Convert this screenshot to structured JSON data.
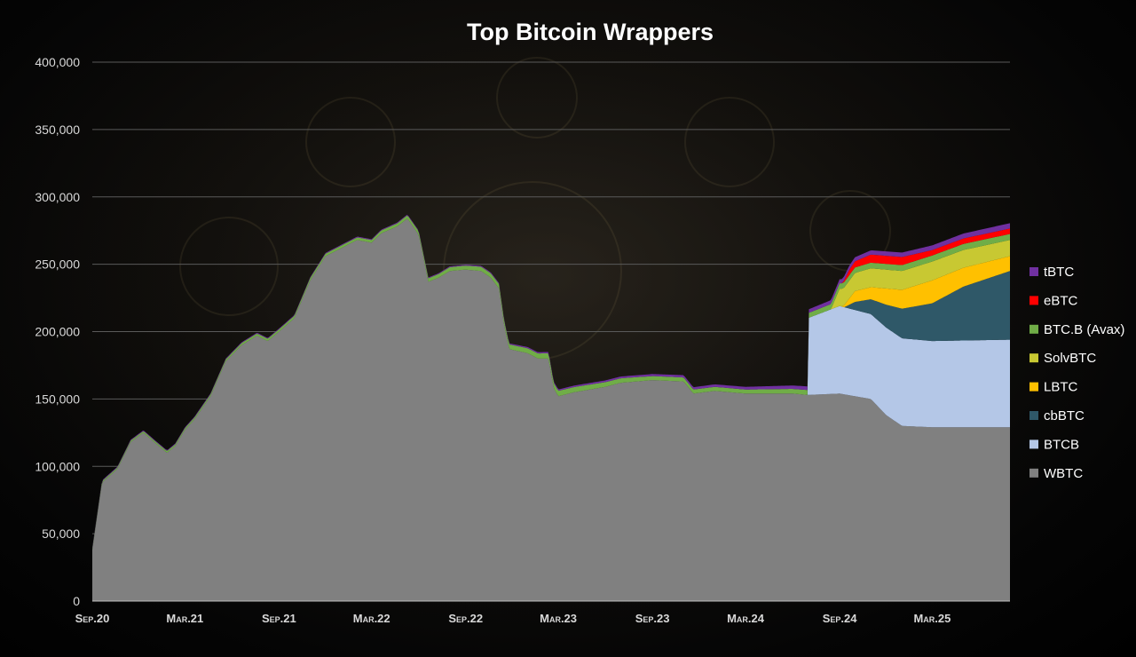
{
  "chart_data": {
    "type": "area",
    "stacked": true,
    "title": "Top Bitcoin Wrappers",
    "xlabel": "",
    "ylabel": "",
    "x_range": [
      "2020-09-01",
      "2025-07-31"
    ],
    "ylim": [
      0,
      400000
    ],
    "y_ticks": [
      0,
      50000,
      100000,
      150000,
      200000,
      250000,
      300000,
      350000,
      400000
    ],
    "y_tick_labels": [
      "0",
      "50,000",
      "100,000",
      "150,000",
      "200,000",
      "250,000",
      "300,000",
      "350,000",
      "400,000"
    ],
    "x_ticks": [
      "2020-09-01",
      "2021-03-01",
      "2021-09-01",
      "2022-03-01",
      "2022-09-01",
      "2023-03-01",
      "2023-09-01",
      "2024-03-01",
      "2024-09-01",
      "2025-03-01"
    ],
    "x_tick_labels": [
      "Sep.20",
      "Mar.21",
      "Sep.21",
      "Mar.22",
      "Sep.22",
      "Mar.23",
      "Sep.23",
      "Mar.24",
      "Sep.24",
      "Mar.25"
    ],
    "grid": "horizontal",
    "legend_position": "right",
    "series_order_bottom_to_top": [
      "WBTC",
      "BTCB",
      "cbBTC",
      "LBTC",
      "SolvBTC",
      "BTC.B (Avax)",
      "eBTC",
      "tBTC"
    ],
    "legend_order": [
      "tBTC",
      "eBTC",
      "BTC.B (Avax)",
      "SolvBTC",
      "LBTC",
      "cbBTC",
      "BTCB",
      "WBTC"
    ],
    "series": [
      {
        "name": "WBTC",
        "color": "#808080",
        "points": [
          [
            "2020-09-01",
            38000
          ],
          [
            "2020-09-20",
            88000
          ],
          [
            "2020-10-20",
            98000
          ],
          [
            "2020-11-15",
            118000
          ],
          [
            "2020-12-10",
            125000
          ],
          [
            "2020-12-31",
            118000
          ],
          [
            "2021-01-25",
            110000
          ],
          [
            "2021-02-10",
            115000
          ],
          [
            "2021-03-01",
            127000
          ],
          [
            "2021-03-20",
            135000
          ],
          [
            "2021-04-20",
            152000
          ],
          [
            "2021-05-20",
            178000
          ],
          [
            "2021-06-20",
            190000
          ],
          [
            "2021-07-20",
            197000
          ],
          [
            "2021-08-10",
            193000
          ],
          [
            "2021-09-01",
            200000
          ],
          [
            "2021-10-01",
            210000
          ],
          [
            "2021-11-01",
            238000
          ],
          [
            "2021-12-01",
            256000
          ],
          [
            "2022-01-01",
            262000
          ],
          [
            "2022-02-01",
            268000
          ],
          [
            "2022-03-01",
            266000
          ],
          [
            "2022-03-20",
            273000
          ],
          [
            "2022-04-20",
            278000
          ],
          [
            "2022-05-10",
            284000
          ],
          [
            "2022-06-01",
            272000
          ],
          [
            "2022-06-20",
            237000
          ],
          [
            "2022-07-10",
            240000
          ],
          [
            "2022-08-01",
            245000
          ],
          [
            "2022-09-01",
            246000
          ],
          [
            "2022-10-01",
            245000
          ],
          [
            "2022-10-20",
            240000
          ],
          [
            "2022-11-05",
            232000
          ],
          [
            "2022-11-15",
            205000
          ],
          [
            "2022-11-25",
            187000
          ],
          [
            "2022-12-31",
            184000
          ],
          [
            "2023-01-20",
            180000
          ],
          [
            "2023-02-10",
            180000
          ],
          [
            "2023-02-20",
            158000
          ],
          [
            "2023-03-01",
            152000
          ],
          [
            "2023-04-01",
            155000
          ],
          [
            "2023-06-01",
            159000
          ],
          [
            "2023-07-01",
            162000
          ],
          [
            "2023-09-01",
            164000
          ],
          [
            "2023-11-01",
            163000
          ],
          [
            "2023-11-20",
            154000
          ],
          [
            "2024-01-01",
            156000
          ],
          [
            "2024-03-01",
            154000
          ],
          [
            "2024-05-01",
            154000
          ],
          [
            "2024-06-01",
            154000
          ],
          [
            "2024-07-01",
            153000
          ],
          [
            "2024-09-01",
            154000
          ],
          [
            "2024-11-01",
            150000
          ],
          [
            "2024-12-01",
            138000
          ],
          [
            "2025-01-01",
            130000
          ],
          [
            "2025-03-01",
            129000
          ],
          [
            "2025-07-31",
            129000
          ]
        ]
      },
      {
        "name": "BTCB",
        "color": "#b4c7e7",
        "points": [
          [
            "2020-09-01",
            0
          ],
          [
            "2024-06-30",
            0
          ],
          [
            "2024-07-01",
            57000
          ],
          [
            "2024-09-01",
            65000
          ],
          [
            "2024-10-01",
            64000
          ],
          [
            "2024-11-01",
            63000
          ],
          [
            "2024-12-01",
            65000
          ],
          [
            "2025-01-01",
            65000
          ],
          [
            "2025-03-01",
            64000
          ],
          [
            "2025-07-31",
            65000
          ]
        ]
      },
      {
        "name": "cbBTC",
        "color": "#2f5868",
        "points": [
          [
            "2020-09-01",
            0
          ],
          [
            "2024-09-10",
            0
          ],
          [
            "2024-10-01",
            6000
          ],
          [
            "2024-11-01",
            11000
          ],
          [
            "2024-12-01",
            17000
          ],
          [
            "2025-01-01",
            22000
          ],
          [
            "2025-03-01",
            28000
          ],
          [
            "2025-05-01",
            40000
          ],
          [
            "2025-07-31",
            51000
          ]
        ]
      },
      {
        "name": "LBTC",
        "color": "#ffc000",
        "points": [
          [
            "2020-09-01",
            0
          ],
          [
            "2024-09-05",
            0
          ],
          [
            "2024-10-01",
            8000
          ],
          [
            "2024-11-01",
            9000
          ],
          [
            "2024-12-01",
            12000
          ],
          [
            "2025-01-01",
            14000
          ],
          [
            "2025-03-01",
            17000
          ],
          [
            "2025-05-01",
            14000
          ],
          [
            "2025-07-31",
            11000
          ]
        ]
      },
      {
        "name": "SolvBTC",
        "color": "#c8c832",
        "points": [
          [
            "2020-09-01",
            0
          ],
          [
            "2024-08-15",
            0
          ],
          [
            "2024-09-01",
            13000
          ],
          [
            "2024-11-01",
            14000
          ],
          [
            "2025-01-01",
            14000
          ],
          [
            "2025-03-01",
            14000
          ],
          [
            "2025-07-31",
            12000
          ]
        ]
      },
      {
        "name": "BTC.B (Avax)",
        "color": "#70ad47",
        "points": [
          [
            "2020-09-01",
            1000
          ],
          [
            "2022-03-01",
            2000
          ],
          [
            "2022-09-01",
            3000
          ],
          [
            "2023-03-01",
            4000
          ],
          [
            "2023-09-01",
            3000
          ],
          [
            "2024-03-01",
            3000
          ],
          [
            "2024-09-01",
            4000
          ],
          [
            "2025-03-01",
            4500
          ],
          [
            "2025-07-31",
            4500
          ]
        ]
      },
      {
        "name": "eBTC",
        "color": "#ff0000",
        "points": [
          [
            "2020-09-01",
            0
          ],
          [
            "2024-09-05",
            0
          ],
          [
            "2024-09-20",
            4000
          ],
          [
            "2024-11-01",
            6000
          ],
          [
            "2025-01-01",
            6000
          ],
          [
            "2025-03-01",
            4000
          ],
          [
            "2025-07-31",
            4000
          ]
        ]
      },
      {
        "name": "tBTC",
        "color": "#7030a0",
        "points": [
          [
            "2020-09-01",
            600
          ],
          [
            "2022-09-01",
            600
          ],
          [
            "2023-09-01",
            1500
          ],
          [
            "2024-03-01",
            2000
          ],
          [
            "2024-09-01",
            3000
          ],
          [
            "2025-03-01",
            3500
          ],
          [
            "2025-07-31",
            4000
          ]
        ]
      }
    ]
  }
}
